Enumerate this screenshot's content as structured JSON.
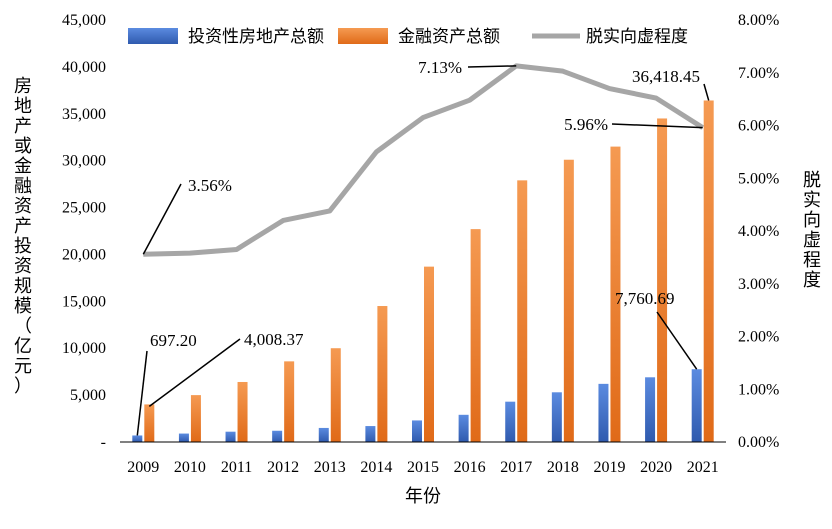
{
  "chart_data": {
    "type": "bar",
    "title": "",
    "categories": [
      "2009",
      "2010",
      "2011",
      "2012",
      "2013",
      "2014",
      "2015",
      "2016",
      "2017",
      "2018",
      "2019",
      "2020",
      "2021"
    ],
    "series": [
      {
        "name": "投资性房地产总额",
        "type": "bar",
        "axis": "left",
        "color": "#4472C4",
        "values": [
          697.2,
          900,
          1100,
          1200,
          1500,
          1700,
          2300,
          2900,
          4300,
          5300,
          6200,
          6900,
          7760.69
        ]
      },
      {
        "name": "金融资产总额",
        "type": "bar",
        "axis": "left",
        "color": "#ED7D31",
        "values": [
          4008.37,
          5000,
          6400,
          8600,
          10000,
          14500,
          18700,
          22700,
          27900,
          30100,
          31500,
          34500,
          36418.45
        ]
      },
      {
        "name": "脱实向虚程度",
        "type": "line",
        "axis": "right",
        "color": "#A6A6A6",
        "values": [
          3.56,
          3.58,
          3.65,
          4.2,
          4.38,
          5.5,
          6.15,
          6.48,
          7.13,
          7.03,
          6.7,
          6.52,
          5.96
        ]
      }
    ],
    "xlabel": "年份",
    "ylabel_left": "房地产或金融资产投资规模（亿元）",
    "ylabel_right": "脱实向虚程度",
    "ylim_left": [
      0,
      45000
    ],
    "ylim_right": [
      0,
      8
    ],
    "yticks_left": [
      "-",
      "5,000",
      "10,000",
      "15,000",
      "20,000",
      "25,000",
      "30,000",
      "35,000",
      "40,000",
      "45,000"
    ],
    "yticks_right": [
      "0.00%",
      "1.00%",
      "2.00%",
      "3.00%",
      "4.00%",
      "5.00%",
      "6.00%",
      "7.00%",
      "8.00%"
    ],
    "legend_position": "top",
    "grid": false,
    "annotations": [
      "697.20",
      "4,008.37",
      "3.56%",
      "7.13%",
      "5.96%",
      "36,418.45",
      "7,760.69"
    ]
  }
}
